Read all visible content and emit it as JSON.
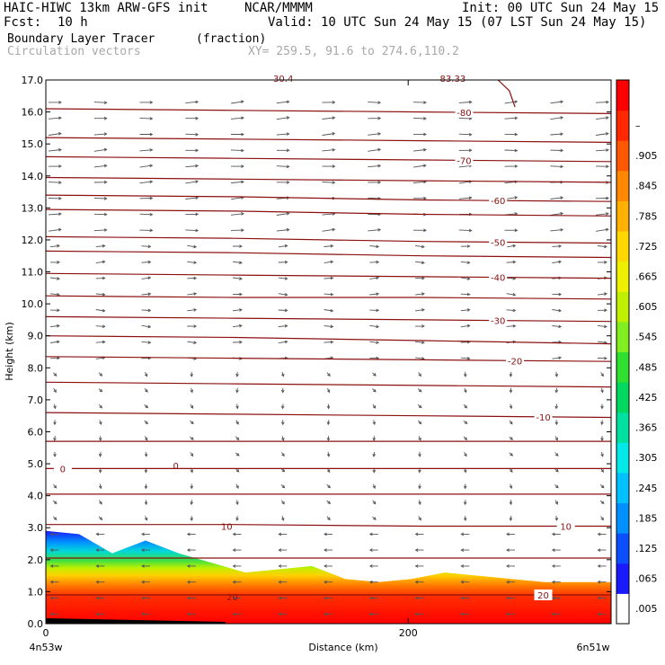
{
  "header": {
    "model": "HAIC-HIWC 13km ARW-GFS init",
    "org": "NCAR/MMMM",
    "init": "Init: 00 UTC Sun 24 May 15",
    "fcst_label": "Fcst:",
    "fcst_value": "10 h",
    "valid": "Valid: 10 UTC Sun 24 May 15 (07 LST Sun 24 May 15)",
    "field_name": "Boundary Layer Tracer",
    "field_units": "(fraction)",
    "vector_label": "Circulation vectors",
    "xy_label": "XY= 259.5, 91.6 to 274.6,110.2"
  },
  "chart_data": {
    "type": "heatmap",
    "xlabel": "Distance (km)",
    "ylabel": "Height (km)",
    "xlim": [
      0,
      312
    ],
    "ylim": [
      0,
      17
    ],
    "x_ticks": [
      {
        "v": 0,
        "t": "0"
      },
      {
        "v": 200,
        "t": "200"
      }
    ],
    "x_end_labels": {
      "left": "4n53w",
      "right": "6n51w"
    },
    "y_ticks": [
      "0.0",
      "1.0",
      "2.0",
      "3.0",
      "4.0",
      "5.0",
      "6.0",
      "7.0",
      "8.0",
      "9.0",
      "10.0",
      "11.0",
      "12.0",
      "13.0",
      "14.0",
      "15.0",
      "16.0",
      "17.0"
    ],
    "colorbar_labels": [
      ".005",
      ".065",
      ".125",
      ".185",
      ".245",
      ".305",
      ".365",
      ".425",
      ".485",
      ".545",
      ".605",
      ".665",
      ".725",
      ".785",
      ".845",
      ".905",
      "–"
    ],
    "colorbar_colors": [
      "#ffffff",
      "#1a1aff",
      "#0a50ff",
      "#0090ff",
      "#00c0ff",
      "#00e8e8",
      "#00e0a0",
      "#00d860",
      "#30e030",
      "#80ee20",
      "#c0f000",
      "#eef000",
      "#ffd800",
      "#ffb000",
      "#ff8800",
      "#ff5800",
      "#ff2800",
      "#ff0000"
    ],
    "isotherms": [
      {
        "y": [
          16.1,
          16.05,
          16.0,
          15.95
        ],
        "label": "-80",
        "lx": 0.74
      },
      {
        "y": [
          15.2,
          15.15,
          15.1,
          15.05
        ],
        "label": "",
        "lx": 0
      },
      {
        "y": [
          14.6,
          14.55,
          14.5,
          14.45
        ],
        "label": "-70",
        "lx": 0.74
      },
      {
        "y": [
          13.95,
          13.9,
          13.85,
          13.8
        ],
        "label": "",
        "lx": 0
      },
      {
        "y": [
          13.4,
          13.35,
          13.25,
          13.2
        ],
        "label": "-60",
        "lx": 0.8
      },
      {
        "y": [
          12.95,
          12.9,
          12.8,
          12.75
        ],
        "label": "",
        "lx": 0
      },
      {
        "y": [
          12.1,
          12.05,
          11.95,
          11.9
        ],
        "label": "-50",
        "lx": 0.8
      },
      {
        "y": [
          11.65,
          11.6,
          11.5,
          11.45
        ],
        "label": "",
        "lx": 0
      },
      {
        "y": [
          10.95,
          10.9,
          10.85,
          10.8
        ],
        "label": "-40",
        "lx": 0.8
      },
      {
        "y": [
          10.25,
          10.2,
          10.2,
          10.15
        ],
        "label": "",
        "lx": 0
      },
      {
        "y": [
          9.6,
          9.55,
          9.5,
          9.45
        ],
        "label": "-30",
        "lx": 0.8
      },
      {
        "y": [
          9.0,
          8.95,
          8.85,
          8.75
        ],
        "label": "",
        "lx": 0
      },
      {
        "y": [
          8.35,
          8.3,
          8.25,
          8.2
        ],
        "label": "-20",
        "lx": 0.83
      },
      {
        "y": [
          7.55,
          7.5,
          7.45,
          7.4
        ],
        "label": "",
        "lx": 0
      },
      {
        "y": [
          6.6,
          6.55,
          6.5,
          6.45
        ],
        "label": "-10",
        "lx": 0.88
      },
      {
        "y": [
          5.7,
          5.7,
          5.7,
          5.7
        ],
        "label": "",
        "lx": 0
      },
      {
        "y": [
          4.85,
          4.85,
          4.85,
          4.85
        ],
        "label": "0",
        "lx": 0.03
      },
      {
        "y": [
          4.05,
          4.05,
          4.05,
          4.05
        ],
        "label": "",
        "lx": 0
      },
      {
        "y": [
          3.1,
          3.1,
          3.05,
          3.05
        ],
        "label": "10",
        "lx": 0.92
      },
      {
        "y": [
          2.05,
          2.05,
          2.05,
          2.05
        ],
        "label": "",
        "lx": 0
      },
      {
        "y": [
          0.9,
          0.9,
          0.9,
          0.9
        ],
        "label": "20",
        "lx": 0.88
      }
    ],
    "extra_labels": [
      {
        "text": "0",
        "x": 0.23,
        "y": 4.95
      },
      {
        "text": "10",
        "x": 0.32,
        "y": 3.05
      },
      {
        "text": "20",
        "x": 0.33,
        "y": 0.85
      }
    ],
    "top_labels": [
      "30.4",
      "83.33"
    ],
    "tracer_top_km": [
      2.9,
      2.8,
      2.2,
      2.6,
      2.2,
      1.9,
      1.6,
      1.7,
      1.8,
      1.4,
      1.3,
      1.4,
      1.6,
      1.5,
      1.4,
      1.3,
      1.3,
      1.3
    ]
  }
}
